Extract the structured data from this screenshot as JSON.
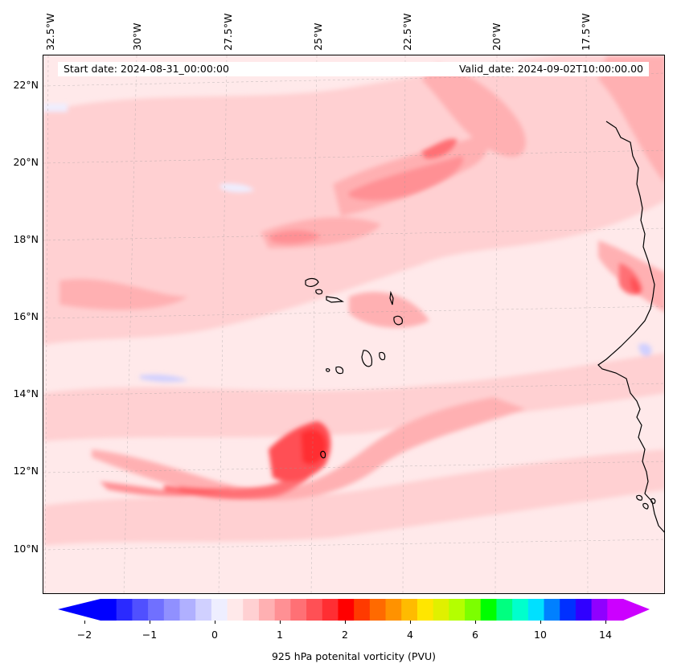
{
  "start_date": "Start date: 2024-08-31_00:00:00",
  "valid_date": "Valid_date: 2024-09-02T10:00:00.00",
  "longitude_labels": [
    "32.5°W",
    "30°W",
    "27.5°W",
    "25°W",
    "22.5°W",
    "20°W",
    "17.5°W"
  ],
  "latitude_labels": [
    "22°N",
    "20°N",
    "18°N",
    "16°N",
    "14°N",
    "12°N",
    "10°N"
  ],
  "colorbar": {
    "label": "925 hPa potenital vorticity (PVU)",
    "tick_labels": [
      "−2",
      "−1",
      "0",
      "1",
      "2",
      "4",
      "6",
      "10",
      "14"
    ],
    "colors": [
      "#0000ff",
      "#2a2aff",
      "#5050ff",
      "#7070ff",
      "#9090ff",
      "#b0b0ff",
      "#d0d0ff",
      "#eeeeff",
      "#ffe9ea",
      "#ffd0d2",
      "#ffb0b2",
      "#ff9094",
      "#ff7075",
      "#ff5055",
      "#ff2e33",
      "#ff0000",
      "#ff3a00",
      "#ff6a00",
      "#ff9200",
      "#ffbb00",
      "#ffe600",
      "#e0f000",
      "#b4ff00",
      "#7cff00",
      "#00ff00",
      "#00ff80",
      "#00ffcc",
      "#00e0ff",
      "#0080ff",
      "#0030ff",
      "#3000ff",
      "#9000ff",
      "#cc00ff"
    ],
    "under_color": "#0000ff",
    "over_color": "#cc00ff"
  },
  "map": {
    "background_color": "#ffe9ea",
    "coastline_color": "#000000",
    "region": "Cabo Verde and West African coast"
  }
}
